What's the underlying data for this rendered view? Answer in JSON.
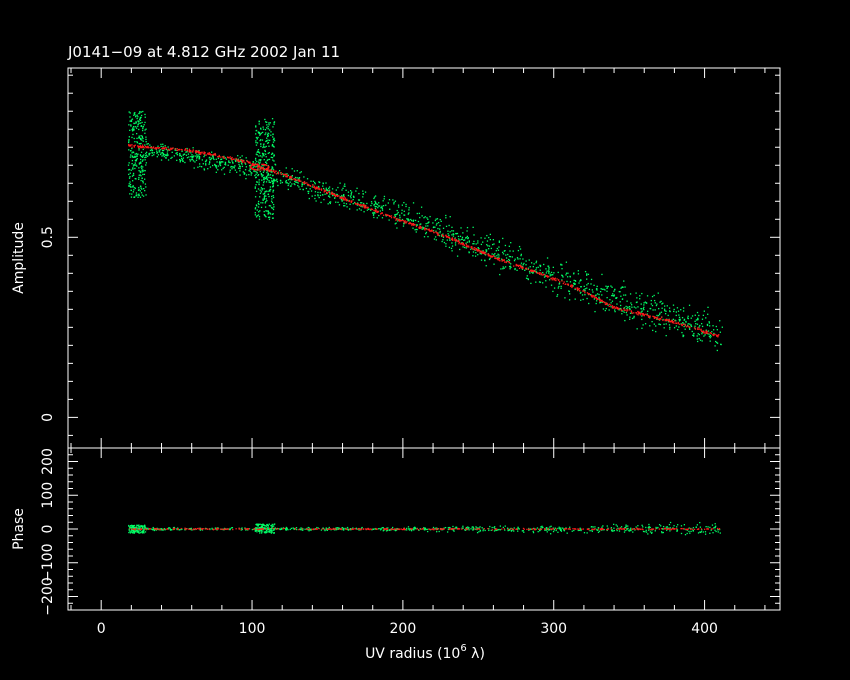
{
  "chart_data": [
    {
      "type": "scatter",
      "panel": "amplitude",
      "title": "J0141−09 at 4.812 GHz 2002 Jan 11",
      "ylabel": "Amplitude",
      "xlim": [
        -22,
        450
      ],
      "ylim": [
        -0.085,
        0.97
      ],
      "x_ticks": [
        0,
        100,
        200,
        300,
        400
      ],
      "y_ticks": [
        0,
        0.5
      ],
      "y_tick_labels": [
        "0",
        "0.5"
      ],
      "series": [
        {
          "color": "#00ff66",
          "clusters": [
            {
              "x_range": [
                18,
                30
              ],
              "y_range": [
                0.61,
                0.85
              ],
              "count": 260
            },
            {
              "x_range": [
                102,
                115
              ],
              "y_range": [
                0.55,
                0.83
              ],
              "count": 300
            }
          ],
          "trend": [
            [
              30,
              0.745
            ],
            [
              100,
              0.69
            ],
            [
              200,
              0.56
            ],
            [
              300,
              0.39
            ],
            [
              410,
              0.23
            ]
          ],
          "scatter": 0.05
        },
        {
          "color": "#ff1a1a",
          "points": [
            [
              18,
              0.755
            ],
            [
              30,
              0.75
            ],
            [
              60,
              0.74
            ],
            [
              80,
              0.725
            ],
            [
              100,
              0.705
            ],
            [
              105,
              0.695
            ],
            [
              120,
              0.675
            ],
            [
              150,
              0.625
            ],
            [
              200,
              0.545
            ],
            [
              230,
              0.5
            ],
            [
              260,
              0.445
            ],
            [
              300,
              0.385
            ],
            [
              320,
              0.35
            ],
            [
              340,
              0.305
            ],
            [
              360,
              0.285
            ],
            [
              380,
              0.265
            ],
            [
              410,
              0.225
            ]
          ]
        }
      ]
    },
    {
      "type": "scatter",
      "panel": "phase",
      "ylabel": "Phase",
      "xlabel": "UV radius  (10",
      "xlabel_exp": "6",
      "xlabel_tail": " λ)",
      "xlim": [
        -22,
        450
      ],
      "ylim": [
        -240,
        240
      ],
      "x_ticks": [
        0,
        100,
        200,
        300,
        400
      ],
      "x_tick_labels": [
        "0",
        "100",
        "200",
        "300",
        "400"
      ],
      "y_ticks": [
        -200,
        -100,
        0,
        100,
        200
      ],
      "y_tick_labels": [
        "−200",
        "−100",
        "0",
        "100",
        "200"
      ],
      "series": [
        {
          "color": "#00ff66",
          "clusters": [
            {
              "x_range": [
                18,
                30
              ],
              "y_range": [
                -12,
                12
              ],
              "count": 120
            },
            {
              "x_range": [
                102,
                115
              ],
              "y_range": [
                -12,
                15
              ],
              "count": 120
            }
          ],
          "spread": [
            [
              30,
              5
            ],
            [
              200,
              8
            ],
            [
              300,
              15
            ],
            [
              410,
              25
            ]
          ]
        },
        {
          "color": "#ff1a1a",
          "line": [
            [
              18,
              0
            ],
            [
              410,
              0
            ]
          ],
          "spread": 3
        }
      ]
    }
  ]
}
